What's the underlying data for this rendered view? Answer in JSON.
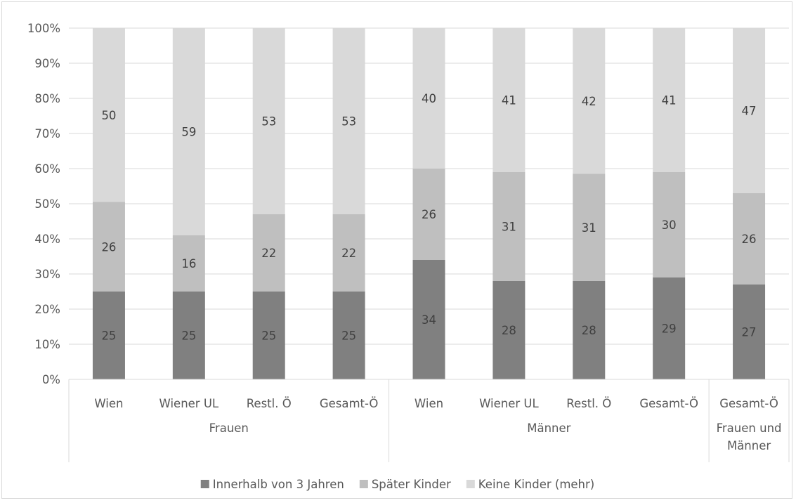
{
  "chart_data": {
    "type": "bar",
    "stacked": true,
    "normalized": true,
    "title": "",
    "xlabel": "",
    "ylabel": "",
    "ylim": [
      0,
      100
    ],
    "y_ticks": [
      "0%",
      "10%",
      "20%",
      "30%",
      "40%",
      "50%",
      "60%",
      "70%",
      "80%",
      "90%",
      "100%"
    ],
    "grid": true,
    "legend_position": "bottom",
    "categories": [
      "Wien",
      "Wiener UL",
      "Restl. Ö",
      "Gesamt-Ö",
      "Wien",
      "Wiener UL",
      "Restl. Ö",
      "Gesamt-Ö",
      "Gesamt-Ö"
    ],
    "groups": [
      {
        "label": "Frauen",
        "count": 4
      },
      {
        "label": "Männer",
        "count": 4
      },
      {
        "label": "Frauen und Männer",
        "lines": [
          "Frauen und",
          "Männer"
        ],
        "count": 1
      }
    ],
    "series": [
      {
        "name": "Innerhalb von 3 Jahren",
        "color": "#808080",
        "values": [
          25,
          25,
          25,
          25,
          34,
          28,
          28,
          29,
          27
        ],
        "labels": [
          "25",
          "25",
          "25",
          "25",
          "34",
          "28",
          "28",
          "29",
          "27"
        ]
      },
      {
        "name": "Später Kinder",
        "color": "#bfbfbf",
        "values": [
          25.5,
          16,
          22,
          22,
          26,
          31,
          30.5,
          30,
          26
        ],
        "labels": [
          "26",
          "16",
          "22",
          "22",
          "26",
          "31",
          "31",
          "30",
          "26"
        ]
      },
      {
        "name": "Keine Kinder (mehr)",
        "color": "#d9d9d9",
        "values": [
          49.5,
          59,
          53,
          53,
          40,
          41,
          41.5,
          41,
          47
        ],
        "labels": [
          "50",
          "59",
          "53",
          "53",
          "40",
          "41",
          "42",
          "41",
          "47"
        ]
      }
    ]
  }
}
